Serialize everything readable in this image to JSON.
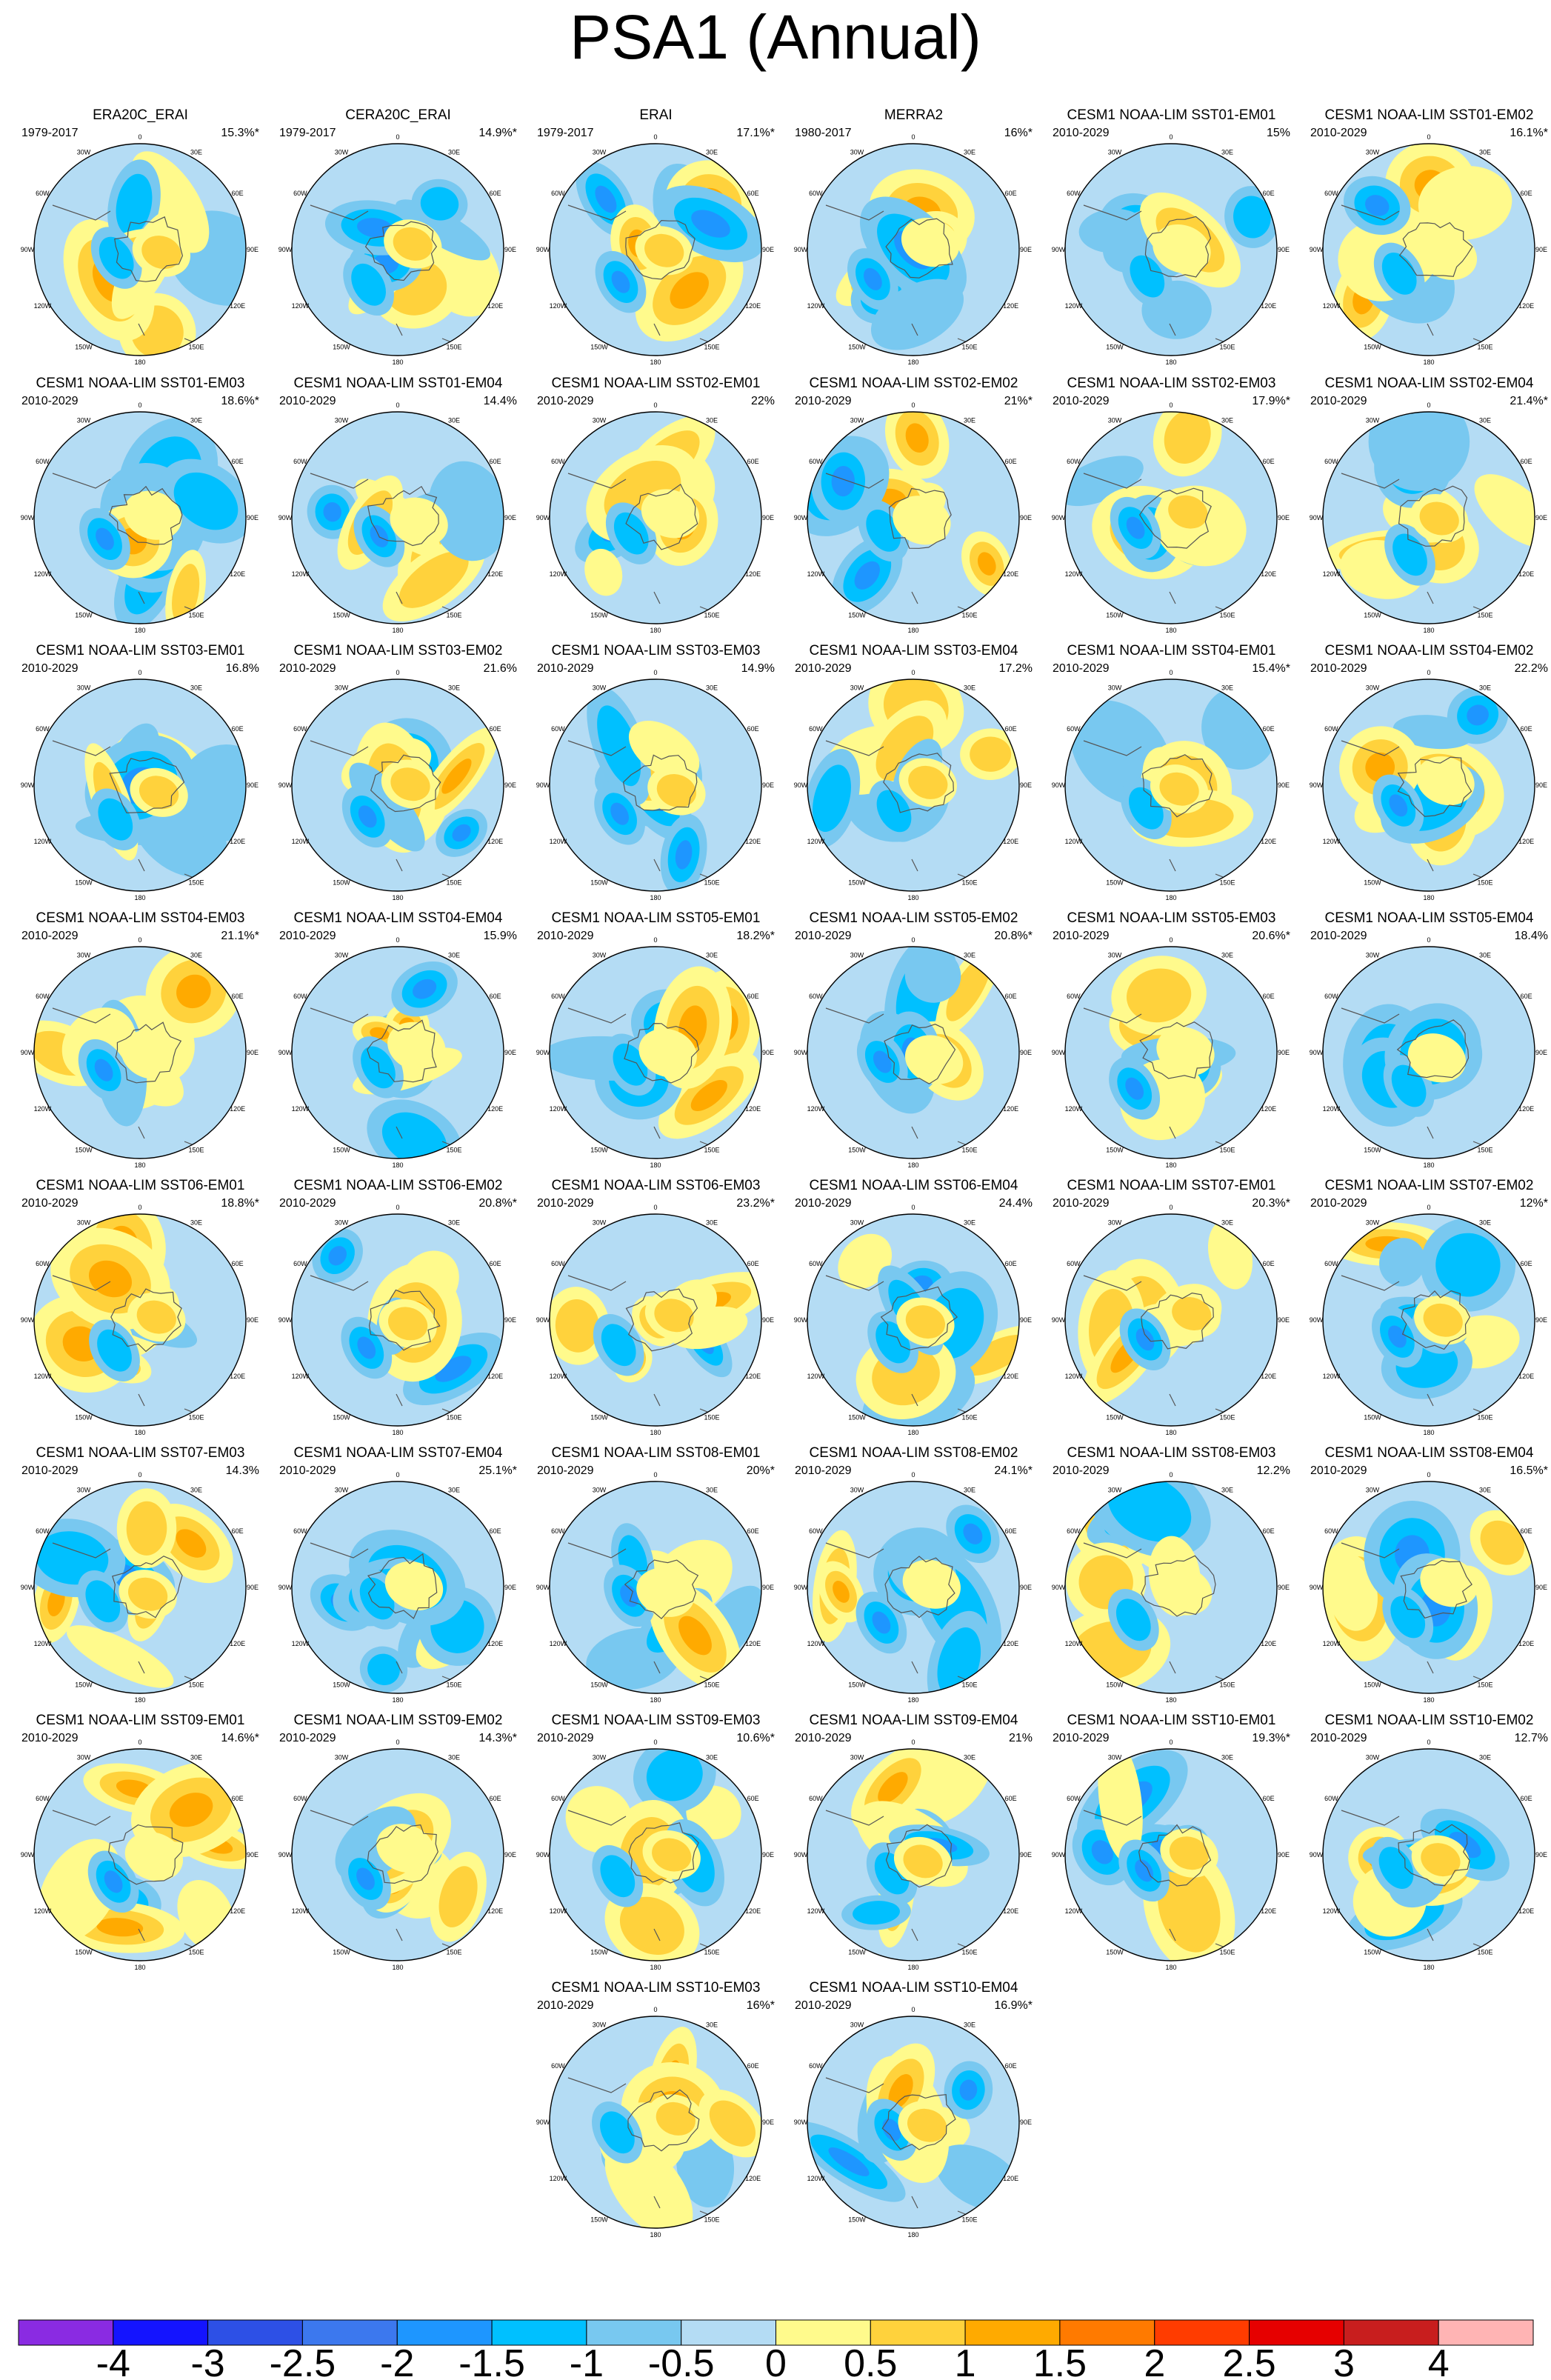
{
  "title": "PSA1 (Annual)",
  "lon_labels": [
    "0",
    "30E",
    "60E",
    "90E",
    "120E",
    "150E",
    "180",
    "150W",
    "120W",
    "90W",
    "60W",
    "30W"
  ],
  "colorbar": {
    "ticks": [
      "-4",
      "-3",
      "-2.5",
      "-2",
      "-1.5",
      "-1",
      "-0.5",
      "0",
      "0.5",
      "1",
      "1.5",
      "2",
      "2.5",
      "3",
      "4"
    ],
    "colors": [
      "#8a2be2",
      "#1414ff",
      "#2d50e6",
      "#3c78ee",
      "#1e96ff",
      "#00c0ff",
      "#78c8f0",
      "#b4dcf4",
      "#fffa8c",
      "#ffd23c",
      "#ffaa00",
      "#ff7a00",
      "#ff3c00",
      "#e60000",
      "#c81e1e",
      "#ffb4b4"
    ]
  },
  "chart_data": {
    "type": "heatmap",
    "title": "PSA1 (Annual)",
    "panels": [
      {
        "name": "ERA20C_ERAI",
        "years": "1979-2017",
        "variance": "15.3%*"
      },
      {
        "name": "CERA20C_ERAI",
        "years": "1979-2017",
        "variance": "14.9%*"
      },
      {
        "name": "ERAI",
        "years": "1979-2017",
        "variance": "17.1%*"
      },
      {
        "name": "MERRA2",
        "years": "1980-2017",
        "variance": "16%*"
      },
      {
        "name": "CESM1 NOAA-LIM SST01-EM01",
        "years": "2010-2029",
        "variance": "15%"
      },
      {
        "name": "CESM1 NOAA-LIM SST01-EM02",
        "years": "2010-2029",
        "variance": "16.1%*"
      },
      {
        "name": "CESM1 NOAA-LIM SST01-EM03",
        "years": "2010-2029",
        "variance": "18.6%*"
      },
      {
        "name": "CESM1 NOAA-LIM SST01-EM04",
        "years": "2010-2029",
        "variance": "14.4%"
      },
      {
        "name": "CESM1 NOAA-LIM SST02-EM01",
        "years": "2010-2029",
        "variance": "22%"
      },
      {
        "name": "CESM1 NOAA-LIM SST02-EM02",
        "years": "2010-2029",
        "variance": "21%*"
      },
      {
        "name": "CESM1 NOAA-LIM SST02-EM03",
        "years": "2010-2029",
        "variance": "17.9%*"
      },
      {
        "name": "CESM1 NOAA-LIM SST02-EM04",
        "years": "2010-2029",
        "variance": "21.4%*"
      },
      {
        "name": "CESM1 NOAA-LIM SST03-EM01",
        "years": "2010-2029",
        "variance": "16.8%"
      },
      {
        "name": "CESM1 NOAA-LIM SST03-EM02",
        "years": "2010-2029",
        "variance": "21.6%"
      },
      {
        "name": "CESM1 NOAA-LIM SST03-EM03",
        "years": "2010-2029",
        "variance": "14.9%"
      },
      {
        "name": "CESM1 NOAA-LIM SST03-EM04",
        "years": "2010-2029",
        "variance": "17.2%"
      },
      {
        "name": "CESM1 NOAA-LIM SST04-EM01",
        "years": "2010-2029",
        "variance": "15.4%*"
      },
      {
        "name": "CESM1 NOAA-LIM SST04-EM02",
        "years": "2010-2029",
        "variance": "22.2%"
      },
      {
        "name": "CESM1 NOAA-LIM SST04-EM03",
        "years": "2010-2029",
        "variance": "21.1%*"
      },
      {
        "name": "CESM1 NOAA-LIM SST04-EM04",
        "years": "2010-2029",
        "variance": "15.9%"
      },
      {
        "name": "CESM1 NOAA-LIM SST05-EM01",
        "years": "2010-2029",
        "variance": "18.2%*"
      },
      {
        "name": "CESM1 NOAA-LIM SST05-EM02",
        "years": "2010-2029",
        "variance": "20.8%*"
      },
      {
        "name": "CESM1 NOAA-LIM SST05-EM03",
        "years": "2010-2029",
        "variance": "20.6%*"
      },
      {
        "name": "CESM1 NOAA-LIM SST05-EM04",
        "years": "2010-2029",
        "variance": "18.4%"
      },
      {
        "name": "CESM1 NOAA-LIM SST06-EM01",
        "years": "2010-2029",
        "variance": "18.8%*"
      },
      {
        "name": "CESM1 NOAA-LIM SST06-EM02",
        "years": "2010-2029",
        "variance": "20.8%*"
      },
      {
        "name": "CESM1 NOAA-LIM SST06-EM03",
        "years": "2010-2029",
        "variance": "23.2%*"
      },
      {
        "name": "CESM1 NOAA-LIM SST06-EM04",
        "years": "2010-2029",
        "variance": "24.4%"
      },
      {
        "name": "CESM1 NOAA-LIM SST07-EM01",
        "years": "2010-2029",
        "variance": "20.3%*"
      },
      {
        "name": "CESM1 NOAA-LIM SST07-EM02",
        "years": "2010-2029",
        "variance": "12%*"
      },
      {
        "name": "CESM1 NOAA-LIM SST07-EM03",
        "years": "2010-2029",
        "variance": "14.3%"
      },
      {
        "name": "CESM1 NOAA-LIM SST07-EM04",
        "years": "2010-2029",
        "variance": "25.1%*"
      },
      {
        "name": "CESM1 NOAA-LIM SST08-EM01",
        "years": "2010-2029",
        "variance": "20%*"
      },
      {
        "name": "CESM1 NOAA-LIM SST08-EM02",
        "years": "2010-2029",
        "variance": "24.1%*"
      },
      {
        "name": "CESM1 NOAA-LIM SST08-EM03",
        "years": "2010-2029",
        "variance": "12.2%"
      },
      {
        "name": "CESM1 NOAA-LIM SST08-EM04",
        "years": "2010-2029",
        "variance": "16.5%*"
      },
      {
        "name": "CESM1 NOAA-LIM SST09-EM01",
        "years": "2010-2029",
        "variance": "14.6%*"
      },
      {
        "name": "CESM1 NOAA-LIM SST09-EM02",
        "years": "2010-2029",
        "variance": "14.3%*"
      },
      {
        "name": "CESM1 NOAA-LIM SST09-EM03",
        "years": "2010-2029",
        "variance": "10.6%*"
      },
      {
        "name": "CESM1 NOAA-LIM SST09-EM04",
        "years": "2010-2029",
        "variance": "21%"
      },
      {
        "name": "CESM1 NOAA-LIM SST10-EM01",
        "years": "2010-2029",
        "variance": "19.3%*"
      },
      {
        "name": "CESM1 NOAA-LIM SST10-EM02",
        "years": "2010-2029",
        "variance": "12.7%"
      },
      {
        "name": "CESM1 NOAA-LIM SST10-EM03",
        "years": "2010-2029",
        "variance": "16%*"
      },
      {
        "name": "CESM1 NOAA-LIM SST10-EM04",
        "years": "2010-2029",
        "variance": "16.9%*"
      }
    ]
  }
}
